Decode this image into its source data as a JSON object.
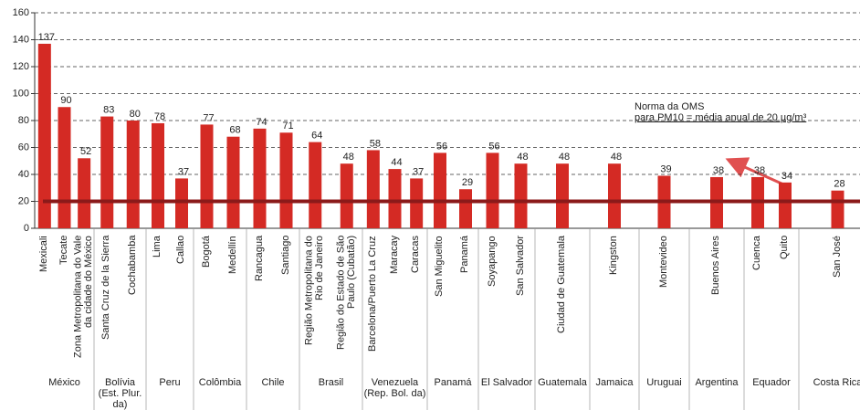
{
  "chart_data": {
    "type": "bar",
    "color": "#d42a24",
    "ylim": [
      0,
      160
    ],
    "yticks": [
      0,
      20,
      40,
      60,
      80,
      100,
      120,
      140,
      160
    ],
    "grid": true,
    "groups": [
      {
        "name": "México",
        "categories": [
          "Mexicali",
          "Tecate",
          "Zona Metropolitana do Vale da cidade do México"
        ],
        "values": [
          137,
          90,
          52
        ]
      },
      {
        "name": "Bolívia (Est. Plur. da)",
        "categories": [
          "Santa Cruz de la Sierra",
          "Cochabamba"
        ],
        "values": [
          83,
          80
        ]
      },
      {
        "name": "Peru",
        "categories": [
          "Lima",
          "Callao"
        ],
        "values": [
          78,
          37
        ]
      },
      {
        "name": "Colômbia",
        "categories": [
          "Bogotá",
          "Medellín"
        ],
        "values": [
          77,
          68
        ]
      },
      {
        "name": "Chile",
        "categories": [
          "Rancagua",
          "Santiago"
        ],
        "values": [
          74,
          71
        ]
      },
      {
        "name": "Brasil",
        "categories": [
          "Região Metropolitana do Rio de Janeiro",
          "Região do Estado de São Paulo (Cubatão)"
        ],
        "values": [
          64,
          48
        ]
      },
      {
        "name": "Venezuela (Rep. Bol. da)",
        "categories": [
          "Barcelona/Puerto La Cruz",
          "Maracay",
          "Caracas"
        ],
        "values": [
          58,
          44,
          37
        ]
      },
      {
        "name": "Panamá",
        "categories": [
          "San Miguelito",
          "Panamá"
        ],
        "values": [
          56,
          29
        ]
      },
      {
        "name": "El Salvador",
        "categories": [
          "Soyapango",
          "San Salvador"
        ],
        "values": [
          56,
          48
        ]
      },
      {
        "name": "Guatemala",
        "categories": [
          "Ciudad de Guatemala"
        ],
        "values": [
          48
        ]
      },
      {
        "name": "Jamaica",
        "categories": [
          "Kingston"
        ],
        "values": [
          48
        ]
      },
      {
        "name": "Uruguai",
        "categories": [
          "Montevideo"
        ],
        "values": [
          39
        ]
      },
      {
        "name": "Argentina",
        "categories": [
          "Buenos Aires"
        ],
        "values": [
          38
        ]
      },
      {
        "name": "Equador",
        "categories": [
          "Cuenca",
          "Quito"
        ],
        "values": [
          38,
          34
        ]
      },
      {
        "name": "Costa Rica",
        "categories": [
          "San José"
        ],
        "values": [
          28
        ]
      }
    ],
    "reference_line": {
      "value": 20,
      "color": "#8b1a1a",
      "label": [
        "Norma da OMS",
        "para PM10 = média anual de 20 µg/m³"
      ]
    }
  }
}
